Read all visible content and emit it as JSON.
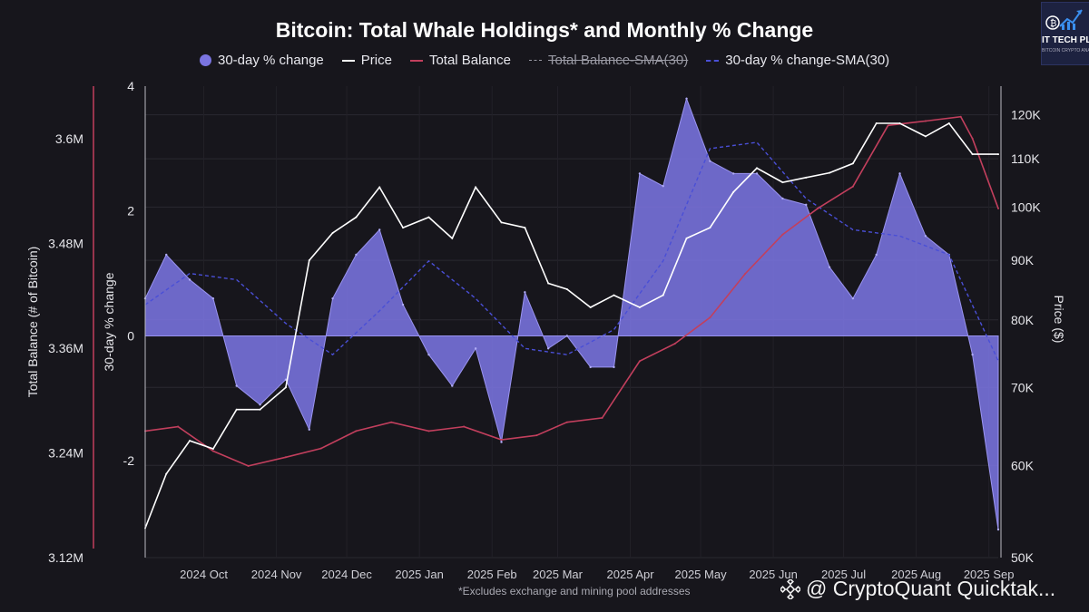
{
  "header": {
    "title": "Bitcoin: Total Whale Holdings* and Monthly % Change"
  },
  "legend": [
    {
      "label": "30-day % change",
      "marker": "dot",
      "color": "#7a74e0"
    },
    {
      "label": "Price",
      "marker": "line",
      "color": "#ffffff"
    },
    {
      "label": "Total Balance",
      "marker": "line",
      "color": "#c23f5d"
    },
    {
      "label": "Total Balance-SMA(30)",
      "marker": "dashed",
      "color": "#9a9aa4",
      "hidden": true
    },
    {
      "label": "30-day % change-SMA(30)",
      "marker": "dashed",
      "color": "#4a4fd6"
    }
  ],
  "logo": {
    "text": "IT TECH PL",
    "subtext": "BITCOIN CRYPTO ANALYSIS"
  },
  "footnote": "*Excludes exchange and mining pool addresses",
  "credit": "@ CryptoQuant Quicktak...",
  "colors": {
    "background": "#17161c",
    "area": "#7a74e0",
    "price": "#ffffff",
    "balance": "#c23f5d",
    "sma": "#4a4fd6"
  },
  "chart_data": {
    "type": "area",
    "x_labels": [
      "2024 Oct",
      "2024 Nov",
      "2024 Dec",
      "2025 Jan",
      "2025 Feb",
      "2025 Mar",
      "2025 Apr",
      "2025 May",
      "2025 Jun",
      "2025 Jul",
      "2025 Aug",
      "2025 Sep"
    ],
    "x_range": [
      "2024-09-06",
      "2025-09-05"
    ],
    "axes": {
      "left_outer": {
        "title": "Total Balance (# of Bitcoin)",
        "ticks": [
          "3.6M",
          "3.48M",
          "3.36M",
          "3.24M",
          "3.12M"
        ],
        "range": [
          3120000,
          3660000
        ]
      },
      "left_inner": {
        "title": "30-day % change",
        "ticks": [
          "4",
          "2",
          "0",
          "-2"
        ],
        "range": [
          -3.55,
          4.0
        ]
      },
      "right": {
        "title": "Price ($)",
        "ticks": [
          "120K",
          "110K",
          "100K",
          "90K",
          "80K",
          "70K",
          "60K",
          "50K"
        ],
        "range": [
          50000,
          127000
        ],
        "scale": "log"
      }
    },
    "grid": true,
    "legend_position": "top",
    "series": [
      {
        "name": "30-day % change",
        "type": "area",
        "dates": [
          "2024-09-06",
          "2024-09-15",
          "2024-09-25",
          "2024-10-05",
          "2024-10-15",
          "2024-10-25",
          "2024-11-05",
          "2024-11-15",
          "2024-11-25",
          "2024-12-05",
          "2024-12-15",
          "2024-12-25",
          "2025-01-05",
          "2025-01-15",
          "2025-01-25",
          "2025-02-05",
          "2025-02-15",
          "2025-02-25",
          "2025-03-05",
          "2025-03-15",
          "2025-03-25",
          "2025-04-05",
          "2025-04-15",
          "2025-04-25",
          "2025-05-05",
          "2025-05-15",
          "2025-05-25",
          "2025-06-05",
          "2025-06-15",
          "2025-06-25",
          "2025-07-05",
          "2025-07-15",
          "2025-07-25",
          "2025-08-05",
          "2025-08-15",
          "2025-08-25",
          "2025-09-05"
        ],
        "values": [
          0.6,
          1.3,
          0.9,
          0.6,
          -0.8,
          -1.1,
          -0.7,
          -1.5,
          0.6,
          1.3,
          1.7,
          0.5,
          -0.3,
          -0.8,
          -0.2,
          -1.7,
          0.7,
          -0.2,
          0.0,
          -0.5,
          -0.5,
          2.6,
          2.4,
          3.8,
          2.8,
          2.6,
          2.6,
          2.2,
          2.1,
          1.1,
          0.6,
          1.3,
          2.6,
          1.6,
          1.3,
          -0.3,
          -3.1
        ]
      },
      {
        "name": "Price",
        "type": "line",
        "dates": [
          "2024-09-06",
          "2024-09-15",
          "2024-09-25",
          "2024-10-05",
          "2024-10-15",
          "2024-10-25",
          "2024-11-05",
          "2024-11-15",
          "2024-11-25",
          "2024-12-05",
          "2024-12-15",
          "2024-12-25",
          "2025-01-05",
          "2025-01-15",
          "2025-01-25",
          "2025-02-05",
          "2025-02-15",
          "2025-02-25",
          "2025-03-05",
          "2025-03-15",
          "2025-03-25",
          "2025-04-05",
          "2025-04-15",
          "2025-04-25",
          "2025-05-05",
          "2025-05-15",
          "2025-05-25",
          "2025-06-05",
          "2025-06-15",
          "2025-06-25",
          "2025-07-05",
          "2025-07-15",
          "2025-07-25",
          "2025-08-05",
          "2025-08-15",
          "2025-08-25",
          "2025-09-05"
        ],
        "values": [
          53000,
          59000,
          63000,
          62000,
          67000,
          67000,
          70000,
          90000,
          95000,
          98000,
          104000,
          96000,
          98000,
          94000,
          104000,
          97000,
          96000,
          86000,
          85000,
          82000,
          84000,
          82000,
          84000,
          94000,
          96000,
          103000,
          108000,
          105000,
          106000,
          107000,
          109000,
          118000,
          118000,
          115000,
          118000,
          111000,
          111000
        ]
      },
      {
        "name": "Total Balance",
        "type": "line",
        "dates": [
          "2024-09-06",
          "2024-09-20",
          "2024-10-05",
          "2024-10-20",
          "2024-11-05",
          "2024-11-20",
          "2024-12-05",
          "2024-12-20",
          "2025-01-05",
          "2025-01-20",
          "2025-02-05",
          "2025-02-20",
          "2025-03-05",
          "2025-03-20",
          "2025-04-05",
          "2025-04-20",
          "2025-05-05",
          "2025-05-20",
          "2025-06-05",
          "2025-06-20",
          "2025-07-05",
          "2025-07-20",
          "2025-08-05",
          "2025-08-20",
          "2025-08-25",
          "2025-09-05"
        ],
        "values": [
          3.265,
          3.27,
          3.242,
          3.225,
          3.235,
          3.245,
          3.265,
          3.275,
          3.265,
          3.27,
          3.255,
          3.26,
          3.275,
          3.28,
          3.345,
          3.365,
          3.395,
          3.445,
          3.49,
          3.52,
          3.545,
          3.615,
          3.62,
          3.625,
          3.6,
          3.52
        ]
      },
      {
        "name": "30-day % change-SMA(30)",
        "type": "dashed-line",
        "dates": [
          "2024-09-06",
          "2024-09-25",
          "2024-10-15",
          "2024-11-05",
          "2024-11-25",
          "2024-12-15",
          "2025-01-05",
          "2025-01-25",
          "2025-02-15",
          "2025-03-05",
          "2025-03-25",
          "2025-04-15",
          "2025-05-05",
          "2025-05-25",
          "2025-06-15",
          "2025-07-05",
          "2025-07-25",
          "2025-08-15",
          "2025-09-05"
        ],
        "values": [
          0.5,
          1.0,
          0.9,
          0.2,
          -0.3,
          0.4,
          1.2,
          0.6,
          -0.2,
          -0.3,
          0.1,
          1.2,
          3.0,
          3.1,
          2.2,
          1.7,
          1.6,
          1.3,
          -0.4
        ]
      }
    ]
  }
}
